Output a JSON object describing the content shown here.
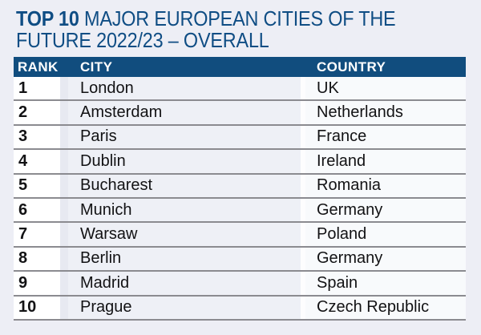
{
  "colors": {
    "page_bg": "#edeef5",
    "bar_blue": "#114d7e",
    "title_blue": "#0f4d84",
    "divider_gray": "#8b8b90",
    "text_dark": "#121214",
    "rank_cell_bg": "#ffffff",
    "city_cell_bg": "#eef0f6",
    "country_cell_bg": "#f8fafc",
    "gap1_bg": "#e7e9f1",
    "gap2_bg": "#fdfdfe"
  },
  "title": {
    "prefix": "TOP 10",
    "line1": "MAJOR EUROPEAN CITIES OF THE",
    "line2": "FUTURE 2022/23 – OVERALL"
  },
  "chart_data": {
    "type": "table",
    "title": "TOP 10 MAJOR EUROPEAN CITIES OF THE FUTURE 2022/23 – OVERALL",
    "columns": [
      "RANK",
      "CITY",
      "COUNTRY"
    ],
    "rows": [
      [
        "1",
        "London",
        "UK"
      ],
      [
        "2",
        "Amsterdam",
        "Netherlands"
      ],
      [
        "3",
        "Paris",
        "France"
      ],
      [
        "4",
        "Dublin",
        "Ireland"
      ],
      [
        "5",
        "Bucharest",
        "Romania"
      ],
      [
        "6",
        "Munich",
        "Germany"
      ],
      [
        "7",
        "Warsaw",
        "Poland"
      ],
      [
        "8",
        "Berlin",
        "Germany"
      ],
      [
        "9",
        "Madrid",
        "Spain"
      ],
      [
        "10",
        "Prague",
        "Czech Republic"
      ]
    ]
  }
}
